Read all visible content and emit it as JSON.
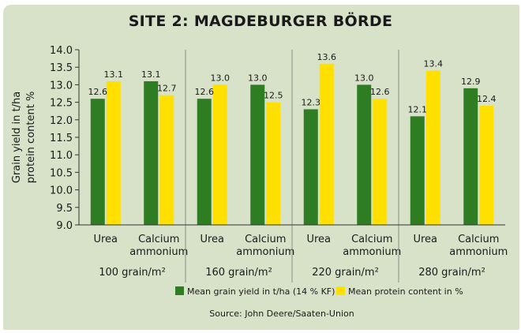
{
  "chart_data": {
    "type": "bar",
    "title": "SITE 2: MAGDEBURGER BÖRDE",
    "ylabel_lines": [
      "Grain yield in t/ha",
      "protein content %"
    ],
    "ylim": [
      9.0,
      14.0
    ],
    "yticks": [
      "9.0",
      "9.5",
      "10.0",
      "10.5",
      "11.0",
      "11.5",
      "12.0",
      "12.5",
      "13.0",
      "13.5",
      "14.0"
    ],
    "groups": [
      {
        "label": "100 grain/m²",
        "categories": [
          {
            "label_lines": [
              "Urea"
            ],
            "yield": 12.6,
            "protein": 13.1,
            "yield_label": "12.6",
            "protein_label": "13.1"
          },
          {
            "label_lines": [
              "Calcium",
              "ammonium"
            ],
            "yield": 13.1,
            "protein": 12.7,
            "yield_label": "13.1",
            "protein_label": "12.7"
          }
        ]
      },
      {
        "label": "160 grain/m²",
        "categories": [
          {
            "label_lines": [
              "Urea"
            ],
            "yield": 12.6,
            "protein": 13.0,
            "yield_label": "12.6",
            "protein_label": "13.0"
          },
          {
            "label_lines": [
              "Calcium",
              "ammonium"
            ],
            "yield": 13.0,
            "protein": 12.5,
            "yield_label": "13.0",
            "protein_label": "12.5"
          }
        ]
      },
      {
        "label": "220 grain/m²",
        "categories": [
          {
            "label_lines": [
              "Urea"
            ],
            "yield": 12.3,
            "protein": 13.6,
            "yield_label": "12.3",
            "protein_label": "13.6"
          },
          {
            "label_lines": [
              "Calcium",
              "ammonium"
            ],
            "yield": 13.0,
            "protein": 12.6,
            "yield_label": "13.0",
            "protein_label": "12.6"
          }
        ]
      },
      {
        "label": "280 grain/m²",
        "categories": [
          {
            "label_lines": [
              "Urea"
            ],
            "yield": 12.1,
            "protein": 13.4,
            "yield_label": "12.1",
            "protein_label": "13.4"
          },
          {
            "label_lines": [
              "Calcium",
              "ammonium"
            ],
            "yield": 12.9,
            "protein": 12.4,
            "yield_label": "12.9",
            "protein_label": "12.4"
          }
        ]
      }
    ],
    "series": [
      {
        "key": "yield",
        "name": "Mean grain yield in t/ha (14 % KF)",
        "color": "#2e7d22"
      },
      {
        "key": "protein",
        "name": "Mean protein content in %",
        "color": "#ffe000"
      }
    ],
    "legend_placement": "bottom-center",
    "source": "Source: John Deere/Saaten-Union",
    "colors": {
      "background": "#d8e2c9",
      "axis": "#333333",
      "text": "#1a1a1a"
    }
  }
}
